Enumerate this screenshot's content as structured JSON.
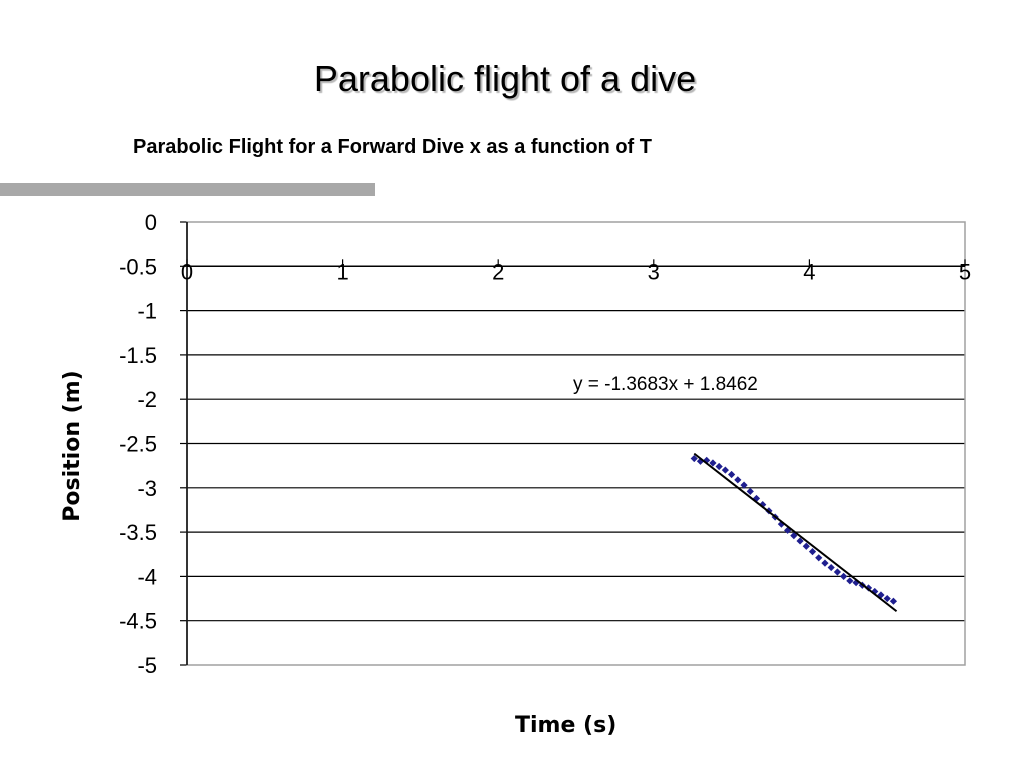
{
  "slide": {
    "title": "Parabolic flight of a dive"
  },
  "chart_data": {
    "type": "scatter",
    "title": "Parabolic Flight for a Forward Dive x as a function of T",
    "xlabel": "Time (s)",
    "ylabel": "Position (m)",
    "xlim": [
      0,
      5
    ],
    "ylim": [
      -5,
      0
    ],
    "x_ticks": [
      "0",
      "1",
      "2",
      "3",
      "4",
      "5"
    ],
    "y_ticks": [
      "0",
      "-0.5",
      "-1",
      "-1.5",
      "-2",
      "-2.5",
      "-3",
      "-3.5",
      "-4",
      "-4.5",
      "-5"
    ],
    "grid": "horizontal",
    "series": [
      {
        "marker": "diamond",
        "color": "#1f1f8f",
        "x": [
          3.26,
          3.3,
          3.34,
          3.38,
          3.42,
          3.46,
          3.5,
          3.54,
          3.58,
          3.62,
          3.66,
          3.7,
          3.74,
          3.78,
          3.82,
          3.86,
          3.9,
          3.94,
          3.98,
          4.02,
          4.06,
          4.1,
          4.14,
          4.18,
          4.22,
          4.26,
          4.3,
          4.34,
          4.38,
          4.42,
          4.46,
          4.5,
          4.54
        ],
        "y": [
          -2.67,
          -2.7,
          -2.69,
          -2.72,
          -2.76,
          -2.8,
          -2.85,
          -2.91,
          -2.97,
          -3.04,
          -3.12,
          -3.19,
          -3.26,
          -3.33,
          -3.41,
          -3.48,
          -3.54,
          -3.6,
          -3.66,
          -3.72,
          -3.79,
          -3.85,
          -3.9,
          -3.95,
          -4.0,
          -4.05,
          -4.07,
          -4.1,
          -4.13,
          -4.17,
          -4.21,
          -4.25,
          -4.28
        ]
      }
    ],
    "trendline": {
      "type": "linear",
      "slope": -1.3683,
      "intercept": 1.8462,
      "x_range": [
        3.26,
        4.56
      ],
      "color": "#000000",
      "label": "y = -1.3683x + 1.8462"
    }
  }
}
